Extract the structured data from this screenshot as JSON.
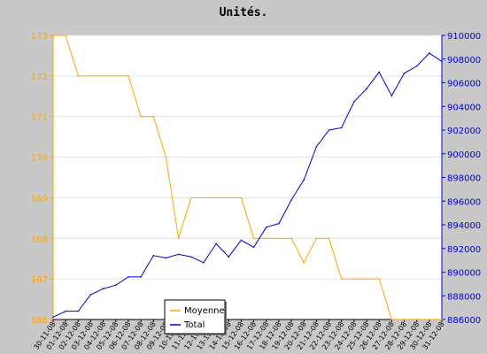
{
  "chart_data": {
    "type": "line",
    "title": "Unités.",
    "categories": [
      "30-11-08",
      "01-12-08",
      "02-12-08",
      "03-12-08",
      "04-12-08",
      "05-12-08",
      "06-12-08",
      "07-12-08",
      "08-12-08",
      "09-12-08",
      "10-12-08",
      "11-12-08",
      "12-12-08",
      "13-12-08",
      "14-12-08",
      "15-12-08",
      "16-12-08",
      "17-12-08",
      "18-12-08",
      "19-12-08",
      "20-12-08",
      "21-12-08",
      "22-12-08",
      "23-12-08",
      "24-12-08",
      "25-12-08",
      "26-12-08",
      "27-12-08",
      "28-12-08",
      "29-12-08",
      "30-12-08",
      "31-12-08"
    ],
    "left_axis": {
      "ylim": [
        166,
        173
      ],
      "ticks": [
        166,
        167,
        168,
        169,
        170,
        171,
        172,
        173
      ],
      "color": "#ffa500"
    },
    "right_axis": {
      "ylim": [
        886000,
        910000
      ],
      "ticks": [
        886000,
        888000,
        890000,
        892000,
        894000,
        896000,
        898000,
        900000,
        902000,
        904000,
        906000,
        908000,
        910000
      ],
      "color": "#0000cc"
    },
    "series": [
      {
        "name": "Moyenne",
        "axis": "left",
        "color": "#ffa500",
        "values": [
          173,
          173,
          172,
          172,
          172,
          172,
          172,
          171,
          171,
          170,
          168,
          169,
          169,
          169,
          169,
          169,
          168,
          168,
          168,
          168,
          167.4,
          168,
          168,
          167,
          167,
          167,
          167,
          166,
          166,
          166,
          166,
          166
        ]
      },
      {
        "name": "Total",
        "axis": "right",
        "color": "#0000cc",
        "values": [
          886200,
          886700,
          886700,
          888100,
          888600,
          888900,
          889600,
          889600,
          891400,
          891200,
          891500,
          891300,
          890800,
          892400,
          891300,
          892700,
          892100,
          893800,
          894100,
          896100,
          897800,
          900600,
          902000,
          902200,
          904400,
          905500,
          906900,
          904900,
          906800,
          907400,
          908500,
          907800
        ]
      }
    ],
    "legend": {
      "position": "bottom-center",
      "items": [
        "Moyenne",
        "Total"
      ]
    },
    "grid": "horizontal"
  }
}
